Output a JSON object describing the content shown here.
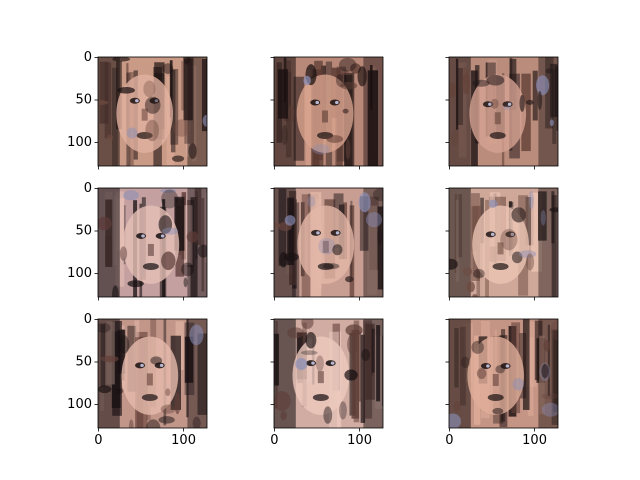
{
  "chart_data": {
    "type": "image-grid",
    "rows": 3,
    "cols": 3,
    "image_extent": [
      0,
      127
    ],
    "xlim": [
      -0.5,
      127.5
    ],
    "ylim": [
      127.5,
      -0.5
    ],
    "x_ticks": [
      0,
      100
    ],
    "y_ticks": [
      0,
      50,
      100
    ],
    "x_tick_labels": [
      "0",
      "100"
    ],
    "y_tick_labels": [
      "0",
      "50",
      "100"
    ],
    "sharex": true,
    "sharey": true,
    "panels": [
      {
        "content": "generated-face",
        "palette": [
          "#c99a86",
          "#1c1212",
          "#e2b2a0",
          "#6e4a40"
        ]
      },
      {
        "content": "generated-face",
        "palette": [
          "#b88878",
          "#1a1010",
          "#d9a48e",
          "#5a3a32"
        ]
      },
      {
        "content": "generated-face",
        "palette": [
          "#b98c7c",
          "#201616",
          "#d6a392",
          "#644238"
        ]
      },
      {
        "content": "generated-face",
        "palette": [
          "#c4a0a0",
          "#140e10",
          "#e6c0b6",
          "#5c3c38"
        ]
      },
      {
        "content": "generated-face",
        "palette": [
          "#c89e92",
          "#1a1214",
          "#e4b8a8",
          "#6a463e"
        ]
      },
      {
        "content": "generated-face",
        "palette": [
          "#cfa89a",
          "#1c1414",
          "#ebc4b4",
          "#6c4a40"
        ]
      },
      {
        "content": "generated-face",
        "palette": [
          "#c2978a",
          "#181012",
          "#e6bbac",
          "#644038"
        ]
      },
      {
        "content": "generated-face",
        "palette": [
          "#d0aca2",
          "#120c0e",
          "#ecc9be",
          "#5e3e38"
        ]
      },
      {
        "content": "generated-face",
        "palette": [
          "#c49484",
          "#1a1010",
          "#e0ae9a",
          "#62403a"
        ]
      }
    ]
  }
}
